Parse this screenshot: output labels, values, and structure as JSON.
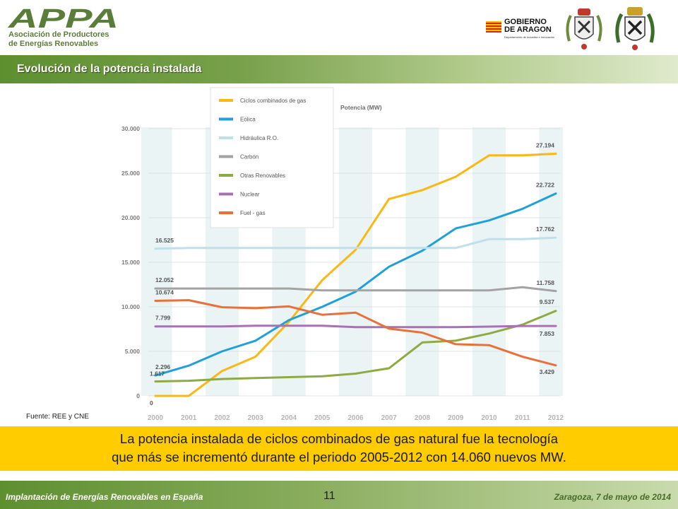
{
  "header": {
    "logo_text": "APPA",
    "logo_line1": "Asociación de Productores",
    "logo_line2": "de Energías Renovables",
    "gov_line1": "GOBIERNO",
    "gov_line2": "DE ARAGON",
    "gov_line3": "Departamento de Industria\ne Innovación",
    "colors": {
      "green": "#5a7d3a",
      "flag_red": "#d52b1e",
      "flag_yellow": "#f2c400"
    }
  },
  "title": "Evolución de la potencia instalada",
  "source": "Fuente: REE y CNE",
  "banner": {
    "line1": "La potencia instalada de ciclos combinados de gas natural fue la tecnología",
    "line2": "que más se incrementó durante el periodo 2005-2012 con 14.060 nuevos MW."
  },
  "footer": {
    "left": "Implantación de Energías Renovables en España",
    "page": "11",
    "right": "Zaragoza, 7 de mayo de 2014"
  },
  "chart_data": {
    "type": "line",
    "ylabel": "Potencia (MW)",
    "ylim": [
      0,
      30000
    ],
    "yticks": [
      "0",
      "5.000",
      "10.000",
      "15.000",
      "20.000",
      "25.000",
      "30.000"
    ],
    "x": [
      "2000",
      "2001",
      "2002",
      "2003",
      "2004",
      "2005",
      "2006",
      "2007",
      "2008",
      "2009",
      "2010",
      "2011",
      "2012"
    ],
    "legend_position": "top-left",
    "series": [
      {
        "name": "Ciclos combinados de gas",
        "color": "#f9b813",
        "values": [
          0,
          0,
          2800,
          4400,
          8300,
          13000,
          16400,
          22100,
          23100,
          24600,
          27000,
          27000,
          27194
        ]
      },
      {
        "name": "Eólica",
        "color": "#1fa0d8",
        "values": [
          2296,
          3400,
          5000,
          6200,
          8500,
          10000,
          11700,
          14500,
          16300,
          18800,
          19700,
          21000,
          22722
        ]
      },
      {
        "name": "Hidráulica R.O.",
        "color": "#bde0ea",
        "values": [
          16525,
          16600,
          16600,
          16600,
          16600,
          16600,
          16600,
          16600,
          16600,
          16600,
          17600,
          17600,
          17762
        ]
      },
      {
        "name": "Carbón",
        "color": "#a3a3a3",
        "values": [
          12052,
          12052,
          12052,
          12052,
          12052,
          11850,
          11850,
          11850,
          11850,
          11850,
          11850,
          12200,
          11758
        ]
      },
      {
        "name": "Otras Renovables",
        "color": "#8eab43",
        "values": [
          1617,
          1700,
          1900,
          2000,
          2100,
          2200,
          2500,
          3100,
          6000,
          6200,
          7000,
          8000,
          9537
        ]
      },
      {
        "name": "Nuclear",
        "color": "#a970b5",
        "values": [
          7799,
          7799,
          7799,
          7876,
          7876,
          7876,
          7716,
          7716,
          7716,
          7716,
          7777,
          7853,
          7853
        ]
      },
      {
        "name": "Fuel - gas",
        "color": "#e8703a",
        "values": [
          10674,
          10750,
          9950,
          9850,
          10050,
          9100,
          9350,
          7550,
          7100,
          5800,
          5700,
          4400,
          3429
        ]
      }
    ],
    "data_labels": [
      {
        "text": "16.525",
        "series": 2,
        "index": 0
      },
      {
        "text": "12.052",
        "series": 3,
        "index": 0
      },
      {
        "text": "10.674",
        "series": 6,
        "index": 0
      },
      {
        "text": "7.799",
        "series": 5,
        "index": 0
      },
      {
        "text": "2.296",
        "series": 1,
        "index": 0
      },
      {
        "text": "1.617",
        "series": 4,
        "index": 0
      },
      {
        "text": "0",
        "series": 0,
        "index": 0
      },
      {
        "text": "27.194",
        "series": 0,
        "index": 12
      },
      {
        "text": "22.722",
        "series": 1,
        "index": 12
      },
      {
        "text": "17.762",
        "series": 2,
        "index": 12
      },
      {
        "text": "11.758",
        "series": 3,
        "index": 12
      },
      {
        "text": "9.537",
        "series": 4,
        "index": 12
      },
      {
        "text": "7.853",
        "series": 5,
        "index": 12
      },
      {
        "text": "3.429",
        "series": 6,
        "index": 12
      }
    ]
  }
}
